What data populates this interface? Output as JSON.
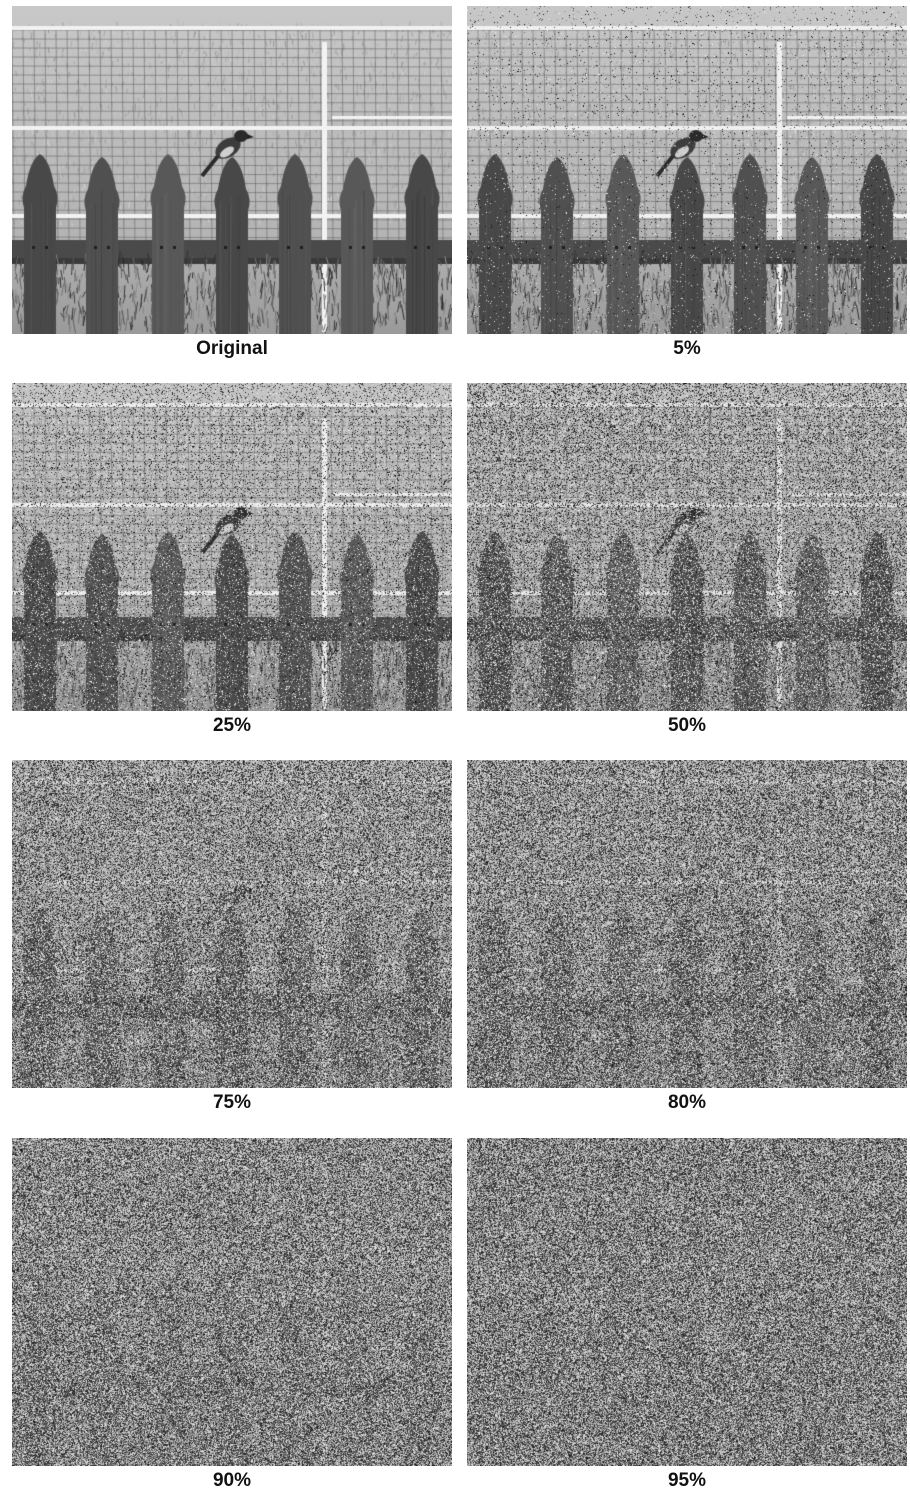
{
  "figure": {
    "panels": [
      {
        "caption": "Original",
        "noise_level": 0
      },
      {
        "caption": "5%",
        "noise_level": 0.05
      },
      {
        "caption": "25%",
        "noise_level": 0.25
      },
      {
        "caption": "50%",
        "noise_level": 0.5
      },
      {
        "caption": "75%",
        "noise_level": 0.75
      },
      {
        "caption": "80%",
        "noise_level": 0.8
      },
      {
        "caption": "90%",
        "noise_level": 0.9
      },
      {
        "caption": "95%",
        "noise_level": 0.95
      }
    ]
  }
}
